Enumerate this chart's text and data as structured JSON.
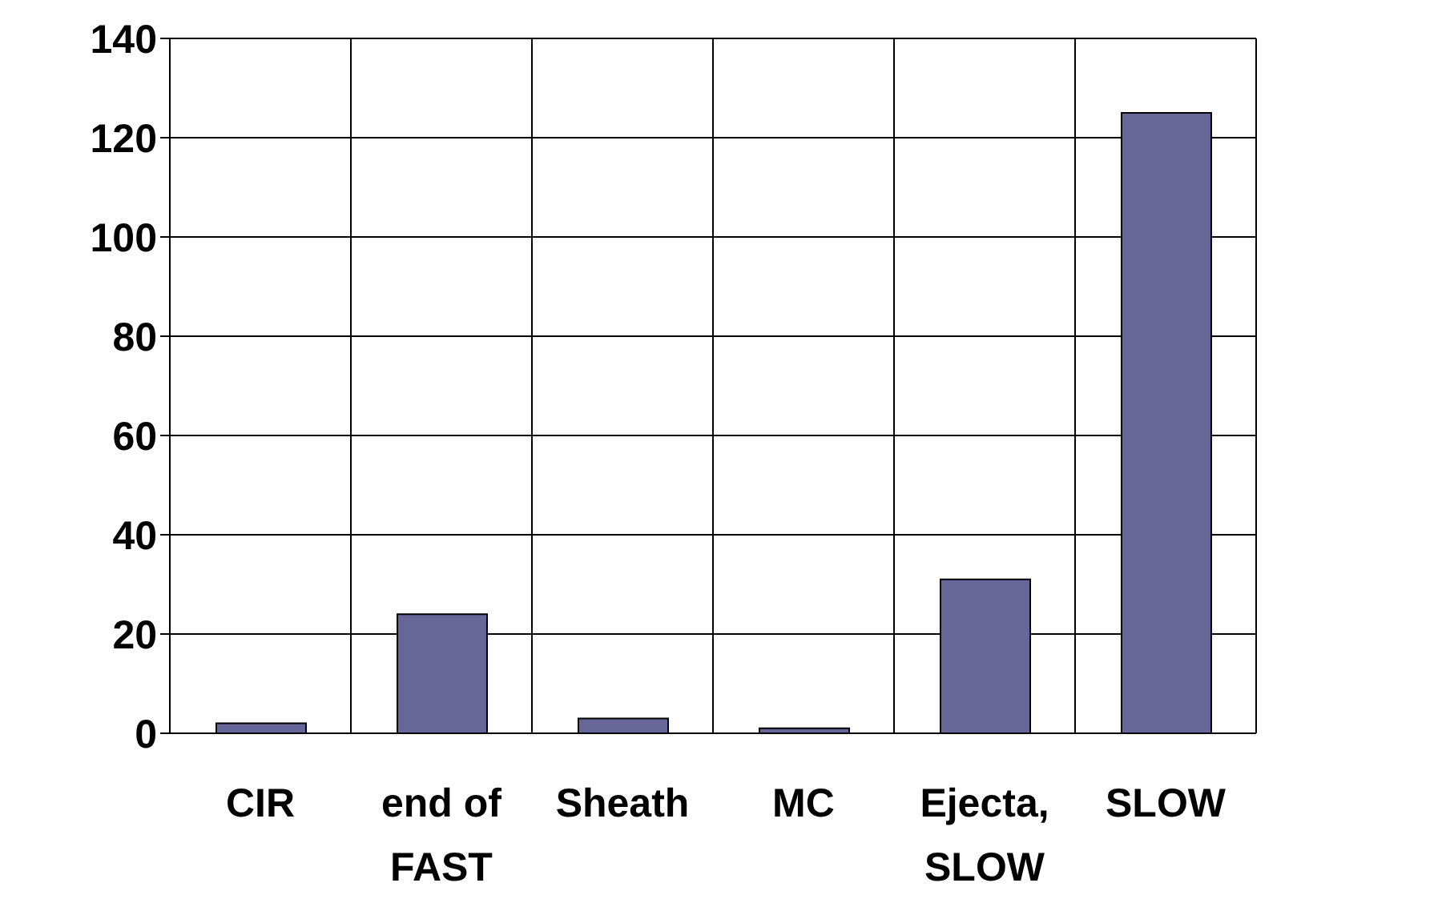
{
  "chart_data": {
    "type": "bar",
    "categories": [
      "CIR",
      "end of FAST",
      "Sheath",
      "MC",
      "Ejecta, SLOW",
      "SLOW"
    ],
    "values": [
      2,
      24,
      3,
      1,
      31,
      125
    ],
    "color": "#666699",
    "ylim": [
      0,
      140
    ],
    "yticks": [
      0,
      20,
      40,
      60,
      80,
      100,
      120,
      140
    ],
    "grid": true
  }
}
